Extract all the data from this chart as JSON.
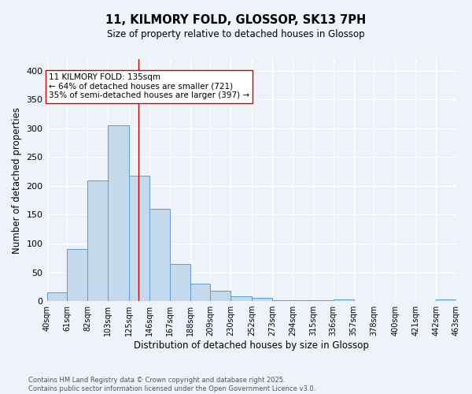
{
  "title": "11, KILMORY FOLD, GLOSSOP, SK13 7PH",
  "subtitle": "Size of property relative to detached houses in Glossop",
  "xlabel": "Distribution of detached houses by size in Glossop",
  "ylabel": "Number of detached properties",
  "bar_values": [
    15,
    90,
    210,
    305,
    218,
    160,
    65,
    30,
    18,
    8,
    5,
    1,
    1,
    1,
    3,
    0,
    0,
    0,
    0,
    3
  ],
  "bin_edges": [
    40,
    61,
    82,
    103,
    125,
    146,
    167,
    188,
    209,
    230,
    252,
    273,
    294,
    315,
    336,
    357,
    378,
    400,
    421,
    442,
    463
  ],
  "bin_labels": [
    "40sqm",
    "61sqm",
    "82sqm",
    "103sqm",
    "125sqm",
    "146sqm",
    "167sqm",
    "188sqm",
    "209sqm",
    "230sqm",
    "252sqm",
    "273sqm",
    "294sqm",
    "315sqm",
    "336sqm",
    "357sqm",
    "378sqm",
    "400sqm",
    "421sqm",
    "442sqm",
    "463sqm"
  ],
  "bar_color": "#c5d9ed",
  "bar_edge_color": "#5b9bd5",
  "ylim": [
    0,
    420
  ],
  "yticks": [
    0,
    50,
    100,
    150,
    200,
    250,
    300,
    350,
    400
  ],
  "vline_x": 135,
  "vline_color": "#cc0000",
  "annotation_text": "11 KILMORY FOLD: 135sqm\n← 64% of detached houses are smaller (721)\n35% of semi-detached houses are larger (397) →",
  "annotation_box_color": "#ffffff",
  "annotation_box_edge": "#cc0000",
  "footer_text": "Contains HM Land Registry data © Crown copyright and database right 2025.\nContains public sector information licensed under the Open Government Licence v3.0.",
  "background_color": "#eef2f9",
  "grid_color": "#ffffff"
}
